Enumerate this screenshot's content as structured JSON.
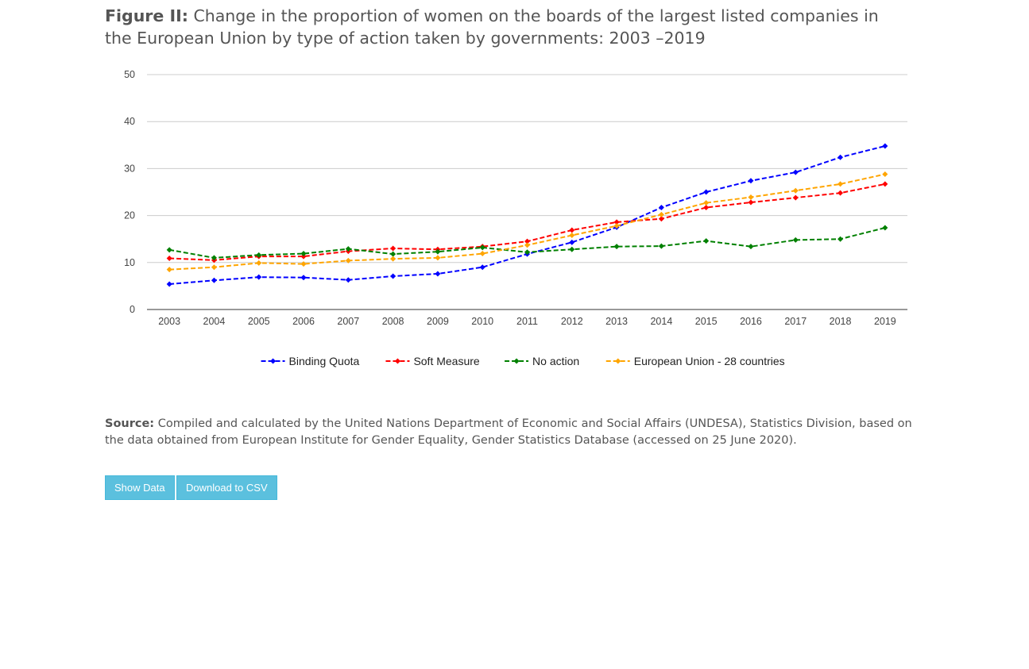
{
  "figure": {
    "label": "Figure II:",
    "title": "Change in the proportion of women on the boards of the largest listed companies in the European Union by type of action taken by governments: 2003 –2019"
  },
  "source": {
    "label": "Source:",
    "text": "Compiled and calculated by the United Nations Department of Economic and Social Affairs (UNDESA), Statistics Division, based on the data obtained from European Institute for Gender Equality, Gender Statistics Database (accessed on 25 June 2020)."
  },
  "buttons": {
    "show_data": "Show Data",
    "download_csv": "Download to CSV"
  },
  "chart_data": {
    "type": "line",
    "title": "",
    "xlabel": "",
    "ylabel": "",
    "ylim": [
      0,
      50
    ],
    "yticks": [
      0,
      10,
      20,
      30,
      40,
      50
    ],
    "grid": true,
    "legend_position": "bottom",
    "x": [
      "2003",
      "2004",
      "2005",
      "2006",
      "2007",
      "2008",
      "2009",
      "2010",
      "2011",
      "2012",
      "2013",
      "2014",
      "2015",
      "2016",
      "2017",
      "2018",
      "2019"
    ],
    "series": [
      {
        "name": "Binding Quota",
        "color": "#0000ff",
        "values": [
          5.4,
          6.2,
          6.9,
          6.8,
          6.3,
          7.1,
          7.6,
          9.0,
          11.8,
          14.3,
          17.5,
          21.7,
          25.0,
          27.4,
          29.2,
          32.4,
          34.8
        ]
      },
      {
        "name": "Soft Measure",
        "color": "#ff0000",
        "values": [
          10.9,
          10.5,
          11.3,
          11.3,
          12.4,
          13.0,
          12.8,
          13.4,
          14.5,
          16.9,
          18.6,
          19.3,
          21.7,
          22.8,
          23.8,
          24.8,
          26.7
        ]
      },
      {
        "name": "No action",
        "color": "#008000",
        "values": [
          12.7,
          11.0,
          11.6,
          11.9,
          12.9,
          11.8,
          12.3,
          13.2,
          12.2,
          12.8,
          13.4,
          13.5,
          14.6,
          13.4,
          14.8,
          15.0,
          17.4
        ]
      },
      {
        "name": "European Union - 28 countries",
        "color": "#ffa500",
        "values": [
          8.5,
          9.0,
          9.9,
          9.7,
          10.4,
          10.8,
          11.0,
          11.9,
          13.7,
          15.8,
          17.8,
          20.2,
          22.7,
          23.9,
          25.3,
          26.7,
          28.8
        ]
      }
    ]
  }
}
